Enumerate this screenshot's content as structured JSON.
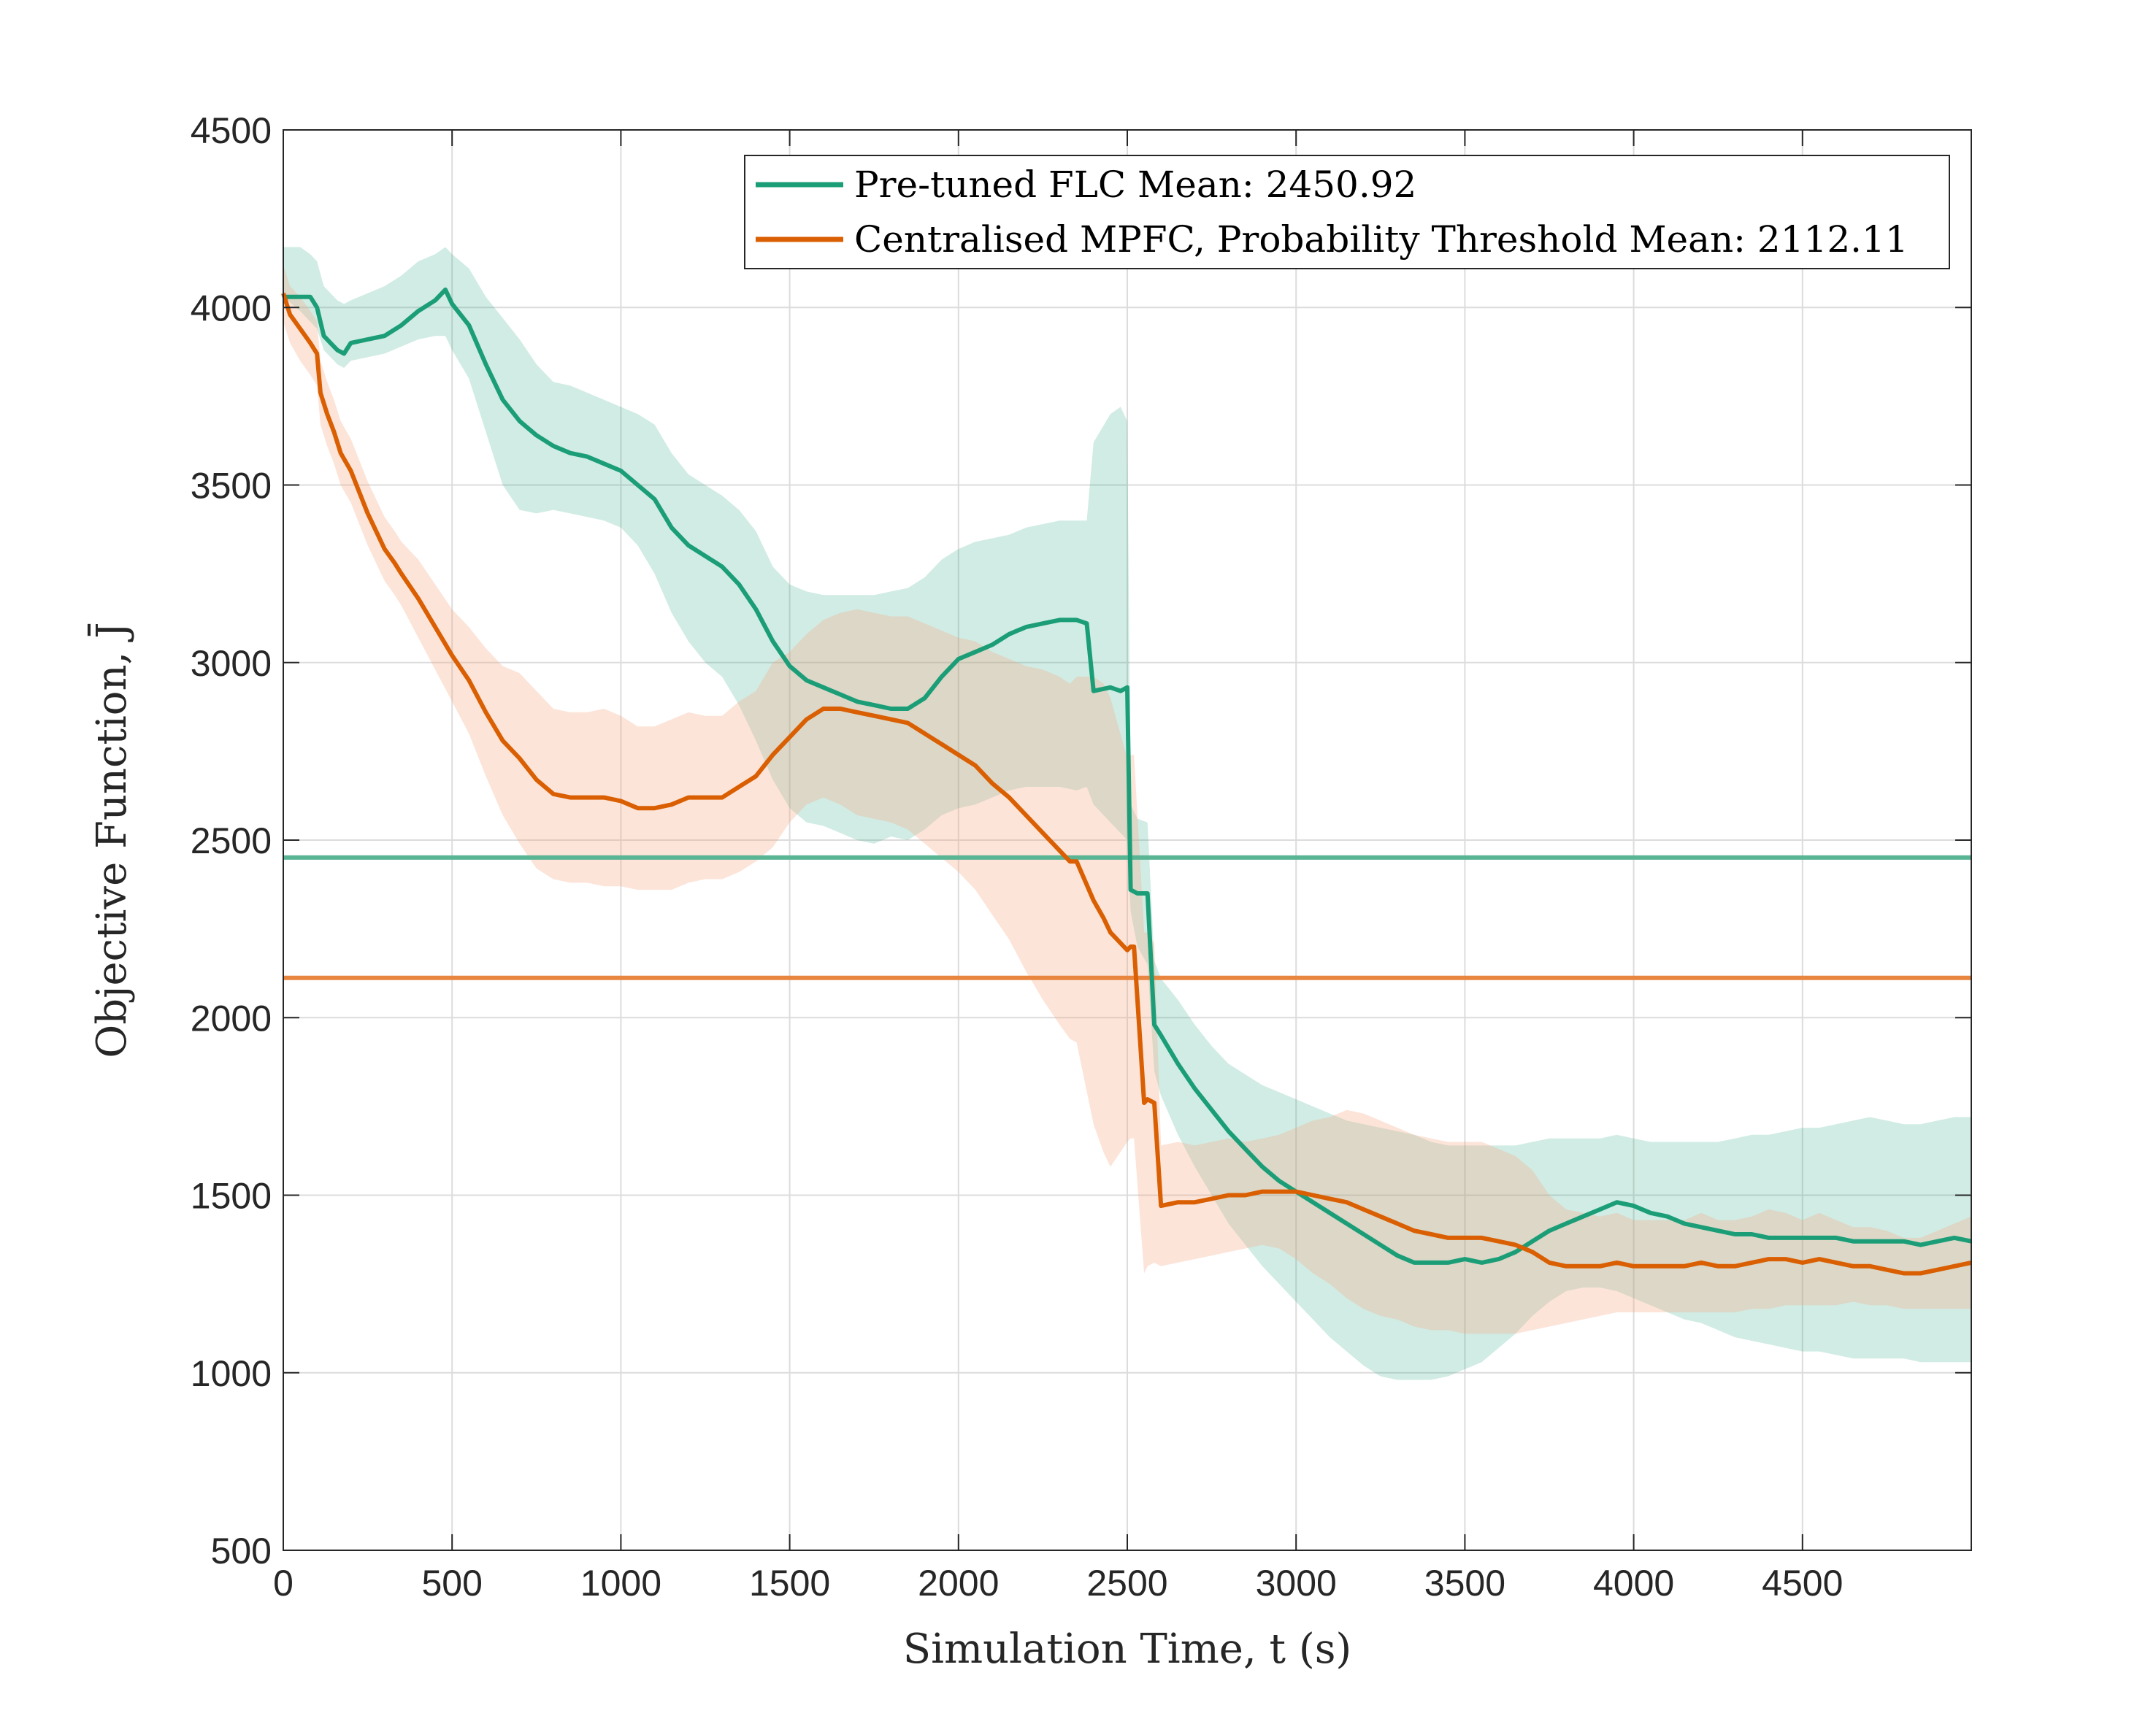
{
  "chart_data": {
    "type": "line",
    "xlabel": "Simulation Time, t (s)",
    "ylabel": "Objective Function, J̄",
    "xlim": [
      0,
      5000
    ],
    "ylim": [
      500,
      4500
    ],
    "xticks": [
      0,
      500,
      1000,
      1500,
      2000,
      2500,
      3000,
      3500,
      4000,
      4500
    ],
    "yticks": [
      500,
      1000,
      1500,
      2000,
      2500,
      3000,
      3500,
      4000,
      4500
    ],
    "grid": true,
    "legend_position": "top-right",
    "series": [
      {
        "name": "Pre-tuned FLC Mean: 2450.92",
        "legend_label": "Pre-tuned FLC Mean: 2450.92",
        "color": "#1b9e77",
        "band_color": "#1b9e77",
        "mean_value": 2450.92,
        "mean_line_color": "#5ab594",
        "x": [
          0,
          50,
          80,
          100,
          120,
          140,
          160,
          180,
          200,
          250,
          300,
          350,
          400,
          450,
          480,
          500,
          550,
          600,
          650,
          700,
          750,
          800,
          850,
          900,
          950,
          1000,
          1050,
          1100,
          1150,
          1200,
          1250,
          1300,
          1350,
          1400,
          1450,
          1500,
          1550,
          1600,
          1650,
          1700,
          1750,
          1800,
          1850,
          1900,
          1950,
          2000,
          2050,
          2100,
          2150,
          2200,
          2250,
          2300,
          2350,
          2380,
          2400,
          2450,
          2480,
          2500,
          2510,
          2530,
          2560,
          2580,
          2600,
          2650,
          2700,
          2750,
          2800,
          2850,
          2900,
          2950,
          3000,
          3050,
          3100,
          3150,
          3200,
          3250,
          3300,
          3350,
          3400,
          3450,
          3500,
          3550,
          3600,
          3650,
          3700,
          3750,
          3800,
          3850,
          3900,
          3950,
          4000,
          4050,
          4100,
          4150,
          4200,
          4250,
          4300,
          4350,
          4400,
          4450,
          4500,
          4550,
          4600,
          4650,
          4700,
          4750,
          4800,
          4850,
          4900,
          4950,
          5000
        ],
        "y": [
          4030,
          4030,
          4030,
          4000,
          3920,
          3900,
          3880,
          3870,
          3900,
          3910,
          3920,
          3950,
          3990,
          4020,
          4050,
          4010,
          3950,
          3840,
          3740,
          3680,
          3640,
          3610,
          3590,
          3580,
          3560,
          3540,
          3500,
          3460,
          3380,
          3330,
          3300,
          3270,
          3220,
          3150,
          3060,
          2990,
          2950,
          2930,
          2910,
          2890,
          2880,
          2870,
          2870,
          2900,
          2960,
          3010,
          3030,
          3050,
          3080,
          3100,
          3110,
          3120,
          3120,
          3110,
          2920,
          2930,
          2920,
          2930,
          2360,
          2350,
          2350,
          1980,
          1950,
          1870,
          1800,
          1740,
          1680,
          1630,
          1580,
          1540,
          1510,
          1480,
          1450,
          1420,
          1390,
          1360,
          1330,
          1310,
          1310,
          1310,
          1320,
          1310,
          1320,
          1340,
          1370,
          1400,
          1420,
          1440,
          1460,
          1480,
          1470,
          1450,
          1440,
          1420,
          1410,
          1400,
          1390,
          1390,
          1380,
          1380,
          1380,
          1380,
          1380,
          1370,
          1370,
          1370,
          1370,
          1360,
          1370,
          1380,
          1370
        ],
        "lower": [
          4030,
          3990,
          3960,
          3940,
          3880,
          3860,
          3840,
          3830,
          3850,
          3860,
          3870,
          3890,
          3910,
          3920,
          3920,
          3880,
          3800,
          3650,
          3500,
          3430,
          3420,
          3430,
          3420,
          3410,
          3400,
          3380,
          3330,
          3250,
          3140,
          3060,
          3000,
          2960,
          2880,
          2780,
          2670,
          2590,
          2550,
          2540,
          2520,
          2500,
          2490,
          2510,
          2500,
          2530,
          2570,
          2590,
          2600,
          2620,
          2640,
          2650,
          2650,
          2650,
          2640,
          2650,
          2600,
          2550,
          2520,
          2500,
          2300,
          2200,
          2150,
          1850,
          1780,
          1670,
          1580,
          1500,
          1420,
          1360,
          1300,
          1250,
          1200,
          1150,
          1100,
          1060,
          1020,
          990,
          980,
          980,
          980,
          990,
          1010,
          1030,
          1070,
          1110,
          1160,
          1200,
          1230,
          1240,
          1240,
          1230,
          1210,
          1190,
          1170,
          1150,
          1140,
          1120,
          1100,
          1090,
          1080,
          1070,
          1060,
          1060,
          1050,
          1040,
          1040,
          1040,
          1040,
          1030,
          1030,
          1030,
          1030
        ],
        "upper": [
          4170,
          4170,
          4150,
          4130,
          4060,
          4040,
          4020,
          4010,
          4020,
          4040,
          4060,
          4090,
          4130,
          4150,
          4170,
          4150,
          4110,
          4030,
          3970,
          3910,
          3840,
          3790,
          3780,
          3760,
          3740,
          3720,
          3700,
          3670,
          3590,
          3530,
          3500,
          3470,
          3430,
          3370,
          3270,
          3220,
          3200,
          3190,
          3190,
          3190,
          3190,
          3200,
          3210,
          3240,
          3290,
          3320,
          3340,
          3350,
          3360,
          3380,
          3390,
          3400,
          3400,
          3400,
          3620,
          3700,
          3720,
          3680,
          2600,
          2560,
          2550,
          2160,
          2110,
          2050,
          1980,
          1920,
          1870,
          1840,
          1810,
          1790,
          1770,
          1750,
          1730,
          1710,
          1700,
          1690,
          1680,
          1670,
          1650,
          1640,
          1640,
          1640,
          1640,
          1640,
          1650,
          1660,
          1660,
          1660,
          1660,
          1670,
          1660,
          1650,
          1650,
          1650,
          1650,
          1650,
          1660,
          1670,
          1670,
          1680,
          1690,
          1690,
          1700,
          1710,
          1720,
          1710,
          1700,
          1700,
          1710,
          1720,
          1720
        ]
      },
      {
        "name": "Centralised MPFC, Probability Threshold Mean: 2112.11",
        "legend_label": "Centralised MPFC, Probability Threshold Mean: 2112.11",
        "color": "#d95f02",
        "band_color": "#f4a582",
        "mean_value": 2112.11,
        "mean_line_color": "#e8853e",
        "x": [
          0,
          20,
          50,
          80,
          100,
          110,
          130,
          150,
          170,
          200,
          250,
          300,
          330,
          350,
          400,
          450,
          500,
          550,
          600,
          650,
          700,
          750,
          800,
          850,
          900,
          950,
          1000,
          1050,
          1100,
          1150,
          1200,
          1250,
          1300,
          1350,
          1400,
          1450,
          1500,
          1550,
          1600,
          1650,
          1700,
          1750,
          1800,
          1850,
          1900,
          1950,
          2000,
          2050,
          2100,
          2150,
          2200,
          2250,
          2300,
          2330,
          2350,
          2400,
          2430,
          2450,
          2500,
          2510,
          2520,
          2550,
          2560,
          2580,
          2600,
          2650,
          2700,
          2750,
          2800,
          2850,
          2900,
          2950,
          3000,
          3050,
          3100,
          3150,
          3200,
          3250,
          3300,
          3350,
          3400,
          3450,
          3500,
          3550,
          3600,
          3650,
          3700,
          3750,
          3800,
          3850,
          3900,
          3950,
          4000,
          4050,
          4100,
          4150,
          4200,
          4250,
          4300,
          4350,
          4400,
          4450,
          4500,
          4550,
          4600,
          4650,
          4700,
          4750,
          4800,
          4850,
          4900,
          4950,
          5000
        ],
        "y": [
          4040,
          3980,
          3940,
          3900,
          3870,
          3760,
          3700,
          3650,
          3590,
          3540,
          3420,
          3320,
          3280,
          3250,
          3180,
          3100,
          3020,
          2950,
          2860,
          2780,
          2730,
          2670,
          2630,
          2620,
          2620,
          2620,
          2610,
          2590,
          2590,
          2600,
          2620,
          2620,
          2620,
          2650,
          2680,
          2740,
          2790,
          2840,
          2870,
          2870,
          2860,
          2850,
          2840,
          2830,
          2800,
          2770,
          2740,
          2710,
          2660,
          2620,
          2570,
          2520,
          2470,
          2440,
          2440,
          2330,
          2280,
          2240,
          2190,
          2200,
          2200,
          1760,
          1770,
          1760,
          1470,
          1480,
          1480,
          1490,
          1500,
          1500,
          1510,
          1510,
          1510,
          1500,
          1490,
          1480,
          1460,
          1440,
          1420,
          1400,
          1390,
          1380,
          1380,
          1380,
          1370,
          1360,
          1340,
          1310,
          1300,
          1300,
          1300,
          1310,
          1300,
          1300,
          1300,
          1300,
          1310,
          1300,
          1300,
          1310,
          1320,
          1320,
          1310,
          1320,
          1310,
          1300,
          1300,
          1290,
          1280,
          1280,
          1290,
          1300,
          1310
        ],
        "lower": [
          3960,
          3900,
          3850,
          3810,
          3780,
          3670,
          3610,
          3560,
          3500,
          3450,
          3330,
          3230,
          3190,
          3160,
          3070,
          2980,
          2890,
          2800,
          2680,
          2570,
          2490,
          2420,
          2390,
          2380,
          2380,
          2370,
          2370,
          2360,
          2360,
          2360,
          2380,
          2390,
          2390,
          2410,
          2440,
          2480,
          2550,
          2600,
          2620,
          2600,
          2570,
          2560,
          2550,
          2530,
          2490,
          2450,
          2410,
          2360,
          2290,
          2220,
          2130,
          2050,
          1980,
          1940,
          1930,
          1700,
          1620,
          1580,
          1650,
          1660,
          1660,
          1280,
          1300,
          1310,
          1300,
          1310,
          1320,
          1330,
          1340,
          1350,
          1360,
          1350,
          1320,
          1280,
          1250,
          1210,
          1180,
          1160,
          1150,
          1130,
          1120,
          1120,
          1110,
          1110,
          1110,
          1110,
          1120,
          1130,
          1140,
          1150,
          1160,
          1170,
          1170,
          1170,
          1170,
          1170,
          1170,
          1170,
          1170,
          1180,
          1180,
          1190,
          1190,
          1190,
          1190,
          1200,
          1190,
          1190,
          1180,
          1180,
          1180,
          1180,
          1180
        ],
        "upper": [
          4120,
          4060,
          4030,
          3990,
          3960,
          3850,
          3790,
          3740,
          3680,
          3630,
          3510,
          3410,
          3370,
          3340,
          3290,
          3220,
          3150,
          3100,
          3040,
          2990,
          2970,
          2920,
          2870,
          2860,
          2860,
          2870,
          2850,
          2820,
          2820,
          2840,
          2860,
          2850,
          2850,
          2890,
          2920,
          3000,
          3030,
          3080,
          3120,
          3140,
          3150,
          3140,
          3130,
          3130,
          3110,
          3090,
          3070,
          3060,
          3030,
          3010,
          2990,
          2980,
          2960,
          2940,
          2960,
          2960,
          2940,
          2900,
          2730,
          2740,
          2740,
          2240,
          2240,
          2210,
          1640,
          1650,
          1640,
          1650,
          1660,
          1650,
          1660,
          1670,
          1690,
          1710,
          1720,
          1740,
          1730,
          1710,
          1690,
          1670,
          1660,
          1650,
          1650,
          1650,
          1630,
          1610,
          1570,
          1500,
          1460,
          1450,
          1440,
          1450,
          1430,
          1430,
          1430,
          1430,
          1450,
          1430,
          1430,
          1440,
          1460,
          1450,
          1430,
          1450,
          1430,
          1410,
          1410,
          1400,
          1380,
          1380,
          1400,
          1420,
          1440
        ]
      }
    ]
  }
}
